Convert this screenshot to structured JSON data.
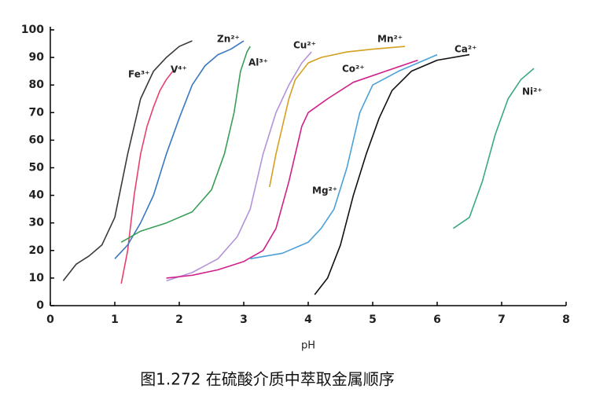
{
  "chart_data": {
    "type": "line",
    "caption": "图1.272 在硫酸介质中萃取金属顺序",
    "x_label": "pH",
    "xlim": [
      0,
      8
    ],
    "xticks": [
      0,
      1,
      2,
      3,
      4,
      5,
      6,
      7,
      8
    ],
    "ylim": [
      0,
      100
    ],
    "yticks": [
      0,
      10,
      20,
      30,
      40,
      50,
      60,
      70,
      80,
      90,
      100
    ],
    "series": [
      {
        "name": "Fe³⁺",
        "color": "#3a3a3a",
        "x": [
          0.2,
          0.4,
          0.6,
          0.8,
          1.0,
          1.2,
          1.4,
          1.6,
          1.8,
          2.0,
          2.2
        ],
        "y": [
          9,
          15,
          18,
          22,
          32,
          55,
          75,
          85,
          90,
          94,
          96
        ]
      },
      {
        "name": "V⁴⁺",
        "color": "#e8406e",
        "x": [
          1.1,
          1.2,
          1.3,
          1.4,
          1.5,
          1.6,
          1.7,
          1.8,
          1.9
        ],
        "y": [
          8,
          20,
          40,
          55,
          65,
          72,
          78,
          82,
          85
        ]
      },
      {
        "name": "Zn²⁺",
        "color": "#3a78c0",
        "x": [
          1.0,
          1.2,
          1.4,
          1.6,
          1.8,
          2.0,
          2.2,
          2.4,
          2.6,
          2.8,
          3.0
        ],
        "y": [
          17,
          22,
          30,
          40,
          55,
          68,
          80,
          87,
          91,
          93,
          96
        ]
      },
      {
        "name": "Al³⁺",
        "color": "#3a9e58",
        "x": [
          1.1,
          1.4,
          1.8,
          2.2,
          2.5,
          2.7,
          2.85,
          2.95,
          3.05,
          3.1
        ],
        "y": [
          23,
          27,
          30,
          34,
          42,
          55,
          70,
          85,
          92,
          94
        ]
      },
      {
        "name": "Cu²⁺",
        "color": "#b394d8",
        "x": [
          1.8,
          2.2,
          2.6,
          2.9,
          3.1,
          3.3,
          3.5,
          3.7,
          3.9,
          4.05
        ],
        "y": [
          9,
          12,
          17,
          25,
          35,
          55,
          70,
          80,
          88,
          92
        ]
      },
      {
        "name": "Mn²⁺",
        "color": "#d4a020",
        "x": [
          3.4,
          3.5,
          3.6,
          3.7,
          3.8,
          4.0,
          4.2,
          4.6,
          5.0,
          5.5
        ],
        "y": [
          43,
          55,
          65,
          75,
          82,
          88,
          90,
          92,
          93,
          94
        ]
      },
      {
        "name": "Co²⁺",
        "color": "#d0208a",
        "x": [
          1.8,
          2.2,
          2.6,
          3.0,
          3.3,
          3.5,
          3.7,
          3.9,
          4.0,
          4.3,
          4.7,
          5.2,
          5.7
        ],
        "y": [
          10,
          11,
          13,
          16,
          20,
          28,
          45,
          65,
          70,
          75,
          81,
          85,
          89
        ]
      },
      {
        "name": "Mg²⁺",
        "color": "#4aa0d8",
        "x": [
          3.1,
          3.6,
          4.0,
          4.2,
          4.4,
          4.6,
          4.8,
          5.0,
          5.4,
          6.0
        ],
        "y": [
          17,
          19,
          23,
          28,
          35,
          50,
          70,
          80,
          85,
          91
        ]
      },
      {
        "name": "Ca²⁺",
        "color": "#111111",
        "x": [
          4.1,
          4.3,
          4.5,
          4.7,
          4.9,
          5.1,
          5.3,
          5.6,
          6.0,
          6.5
        ],
        "y": [
          4,
          10,
          22,
          40,
          55,
          68,
          78,
          85,
          89,
          91
        ]
      },
      {
        "name": "Ni²⁺",
        "color": "#3aaa80",
        "x": [
          6.25,
          6.5,
          6.7,
          6.9,
          7.1,
          7.3,
          7.5
        ],
        "y": [
          28,
          32,
          45,
          62,
          75,
          82,
          86
        ]
      }
    ]
  }
}
